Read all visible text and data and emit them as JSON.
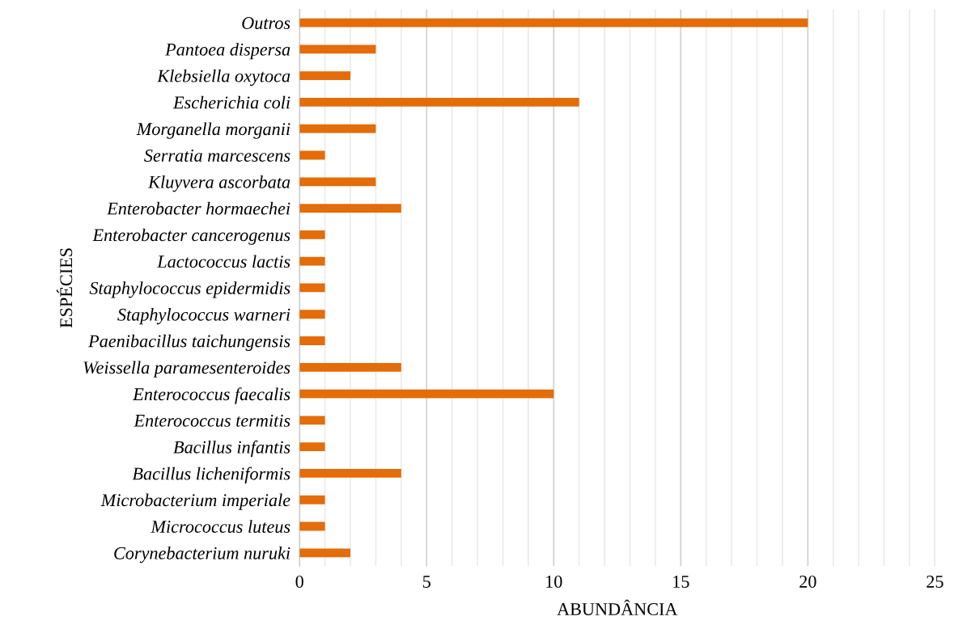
{
  "chart_data": {
    "type": "bar",
    "orientation": "horizontal",
    "xlabel": "ABUNDÂNCIA",
    "ylabel": "ESPÉCIES",
    "categories": [
      "Outros",
      "Pantoea dispersa",
      "Klebsiella oxytoca",
      "Escherichia coli",
      "Morganella morganii",
      "Serratia marcescens",
      "Kluyvera ascorbata",
      "Enterobacter hormaechei",
      "Enterobacter cancerogenus",
      "Lactococcus lactis",
      "Staphylococcus epidermidis",
      "Staphylococcus warneri",
      "Paenibacillus taichungensis",
      "Weissella paramesenteroides",
      "Enterococcus faecalis",
      "Enterococcus termitis",
      "Bacillus infantis",
      "Bacillus licheniformis",
      "Microbacterium imperiale",
      "Micrococcus luteus",
      "Corynebacterium nuruki"
    ],
    "values": [
      20,
      3,
      2,
      11,
      3,
      1,
      3,
      4,
      1,
      1,
      1,
      1,
      1,
      4,
      10,
      1,
      1,
      4,
      1,
      1,
      2
    ],
    "color": "#e46c0a",
    "xlim": [
      0,
      25
    ],
    "xticks": [
      0,
      {
        "value": 1,
        "label": null
      },
      {
        "value": 2,
        "label": null
      },
      {
        "value": 3,
        "label": null
      },
      {
        "value": 4,
        "label": null
      },
      5,
      {
        "value": 6,
        "label": null
      },
      {
        "value": 7,
        "label": null
      },
      {
        "value": 8,
        "label": null
      },
      {
        "value": 9,
        "label": null
      },
      10,
      {
        "value": 11,
        "label": null
      },
      {
        "value": 12,
        "label": null
      },
      {
        "value": 13,
        "label": null
      },
      {
        "value": 14,
        "label": null
      },
      15,
      {
        "value": 16,
        "label": null
      },
      {
        "value": 17,
        "label": null
      },
      {
        "value": 18,
        "label": null
      },
      {
        "value": 19,
        "label": null
      },
      20,
      {
        "value": 21,
        "label": null
      },
      {
        "value": 22,
        "label": null
      },
      {
        "value": 23,
        "label": null
      },
      {
        "value": 24,
        "label": null
      },
      25
    ],
    "grid": "x"
  }
}
